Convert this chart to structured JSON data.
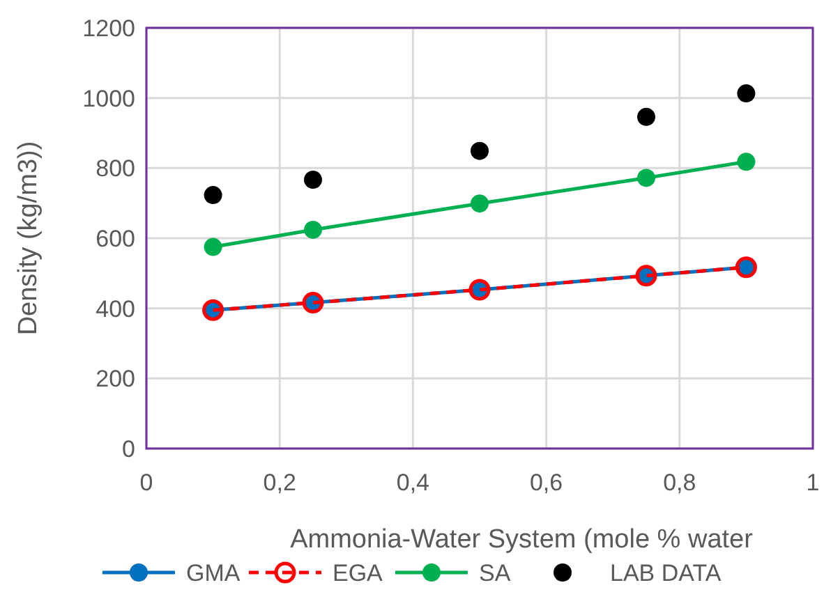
{
  "chart_data": {
    "type": "line",
    "xlabel": "Ammonia-Water System (mole % water",
    "ylabel": "Density (kg/m3))",
    "x": [
      0.1,
      0.25,
      0.5,
      0.75,
      0.9
    ],
    "xlim": [
      0,
      1
    ],
    "xticks": [
      0,
      {
        "value": 0.2,
        "label": "0,2"
      },
      {
        "value": 0.4,
        "label": "0,4"
      },
      {
        "value": 0.6,
        "label": "0,6"
      },
      {
        "value": 0.8,
        "label": "0,8"
      },
      1
    ],
    "ylim": [
      0,
      1200
    ],
    "yticks": [
      0,
      200,
      400,
      600,
      800,
      1000,
      1200
    ],
    "grid": true,
    "legend": "bottom",
    "marker": "circle",
    "series": [
      {
        "name": "GMA",
        "color": "#0070c0",
        "values": [
          395,
          416,
          453,
          493,
          517
        ],
        "line_style": "solid"
      },
      {
        "name": "EGA",
        "color": "#ff0000",
        "values": [
          395,
          416,
          453,
          493,
          517
        ],
        "line_style": "dashed"
      },
      {
        "name": "SA",
        "color": "#00b050",
        "values": [
          575,
          624,
          699,
          772,
          818
        ],
        "line_style": "solid"
      },
      {
        "name": "LAB DATA",
        "color": "#000000",
        "type": "scatter",
        "values": [
          723,
          767,
          849,
          946,
          1013
        ]
      }
    ]
  }
}
